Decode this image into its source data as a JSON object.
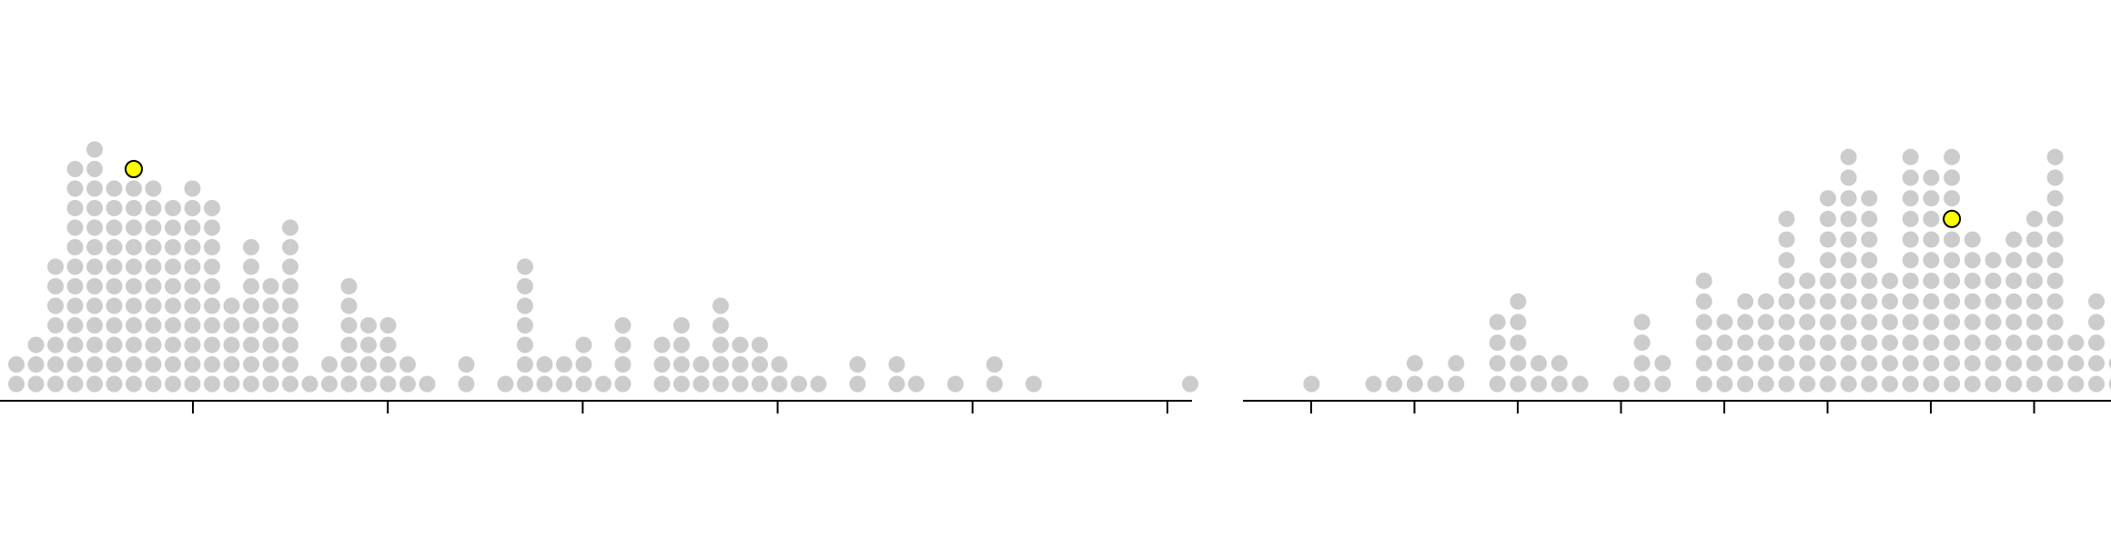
{
  "colors": {
    "dot": "#cccccc",
    "highlight_fill": "#ffff00",
    "highlight_stroke": "#000000",
    "axis": "#000000"
  },
  "chart_data": [
    {
      "type": "scatter",
      "subtype": "dot-plot",
      "title": "",
      "xlabel": "",
      "ylabel": "",
      "tick_count": 6,
      "tick_labels": [],
      "grid": false,
      "legend": "none",
      "columns": [
        2,
        3,
        7,
        12,
        13,
        11,
        11,
        11,
        10,
        11,
        10,
        5,
        8,
        6,
        9,
        1,
        2,
        6,
        4,
        4,
        2,
        1,
        0,
        2,
        0,
        1,
        7,
        2,
        2,
        3,
        1,
        4,
        0,
        3,
        4,
        2,
        5,
        3,
        3,
        2,
        1,
        1,
        0,
        2,
        0,
        2,
        1,
        0,
        1,
        0,
        2,
        0,
        1,
        0,
        0,
        0,
        0,
        0,
        0,
        0,
        1
      ],
      "highlight": {
        "column": 6,
        "level": 11
      }
    },
    {
      "type": "scatter",
      "subtype": "dot-plot",
      "title": "",
      "xlabel": "",
      "ylabel": "",
      "tick_count": 8,
      "tick_labels": [],
      "grid": false,
      "legend": "none",
      "columns": [
        0,
        0,
        1,
        0,
        0,
        1,
        1,
        2,
        1,
        2,
        0,
        4,
        5,
        2,
        2,
        1,
        0,
        1,
        4,
        2,
        0,
        6,
        4,
        5,
        5,
        9,
        6,
        10,
        12,
        10,
        6,
        12,
        11,
        12,
        8,
        7,
        8,
        9,
        12,
        3,
        5,
        2,
        2,
        2
      ],
      "highlight": {
        "column": 33,
        "level": 8
      }
    }
  ]
}
